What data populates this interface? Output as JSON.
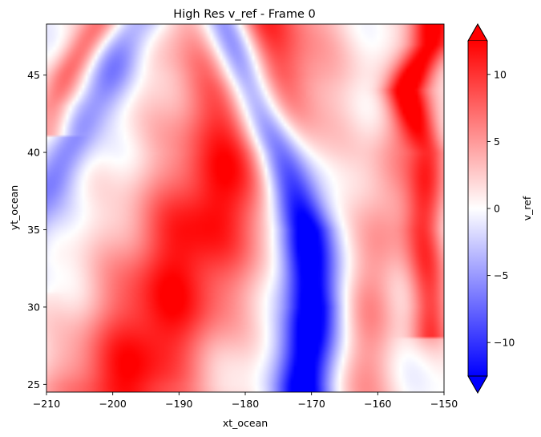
{
  "chart_data": {
    "type": "heatmap",
    "title": "High Res v_ref - Frame 0",
    "xlabel": "xt_ocean",
    "ylabel": "yt_ocean",
    "xlim": [
      -210,
      -150
    ],
    "ylim": [
      24.5,
      48.3
    ],
    "x_ticks": [
      -210,
      -200,
      -190,
      -180,
      -170,
      -160,
      -150
    ],
    "x_tick_labels": [
      "−210",
      "−200",
      "−190",
      "−180",
      "−170",
      "−160",
      "−150"
    ],
    "y_ticks": [
      25,
      30,
      35,
      40,
      45
    ],
    "y_tick_labels": [
      "25",
      "30",
      "35",
      "40",
      "45"
    ],
    "colorbar": {
      "label": "v_ref",
      "colormap": "bwr",
      "vmin": -12.5,
      "vmax": 12.5,
      "extend": "both",
      "ticks": [
        -10,
        -5,
        0,
        5,
        10
      ],
      "tick_labels": [
        "−10",
        "−5",
        "0",
        "5",
        "10"
      ],
      "colors": {
        "low": "#0000ff",
        "mid": "#ffffff",
        "high": "#ff0000"
      }
    },
    "grid": false,
    "field_features": [
      {
        "kind": "positive_band",
        "x": [
          -198,
          -192,
          -187,
          -181,
          -179,
          -180
        ],
        "y": [
          25,
          30,
          35,
          40,
          45,
          48.3
        ],
        "width": 11.0,
        "amp": 12.0
      },
      {
        "kind": "negative_band",
        "x": [
          -171,
          -170,
          -171,
          -175,
          -180,
          -183
        ],
        "y": [
          25,
          30,
          35,
          40,
          45,
          48.3
        ],
        "width": 4.0,
        "amp": -15.5
      },
      {
        "kind": "positive_band",
        "x": [
          -162.5,
          -161,
          -159,
          -157,
          -154,
          -151
        ],
        "y": [
          25,
          30,
          35,
          40,
          45,
          48.3
        ],
        "width": 4.5,
        "amp": 5.0
      },
      {
        "kind": "positive_band",
        "x": [
          -152,
          -153,
          -152,
          -154,
          -156,
          -152
        ],
        "y": [
          30,
          35,
          40,
          42,
          44,
          47
        ],
        "width": 3.0,
        "amp": 9.0
      },
      {
        "kind": "negative_band",
        "x": [
          -215,
          -211,
          -207,
          -203,
          -199,
          -196
        ],
        "y": [
          33,
          37,
          40,
          43,
          46,
          48.3
        ],
        "width": 4.0,
        "amp": -6.0
      },
      {
        "kind": "positive_band",
        "x": [
          -209,
          -207,
          -204,
          -202
        ],
        "y": [
          43,
          45,
          47,
          48.3
        ],
        "width": 3.0,
        "amp": 7.0
      }
    ]
  }
}
